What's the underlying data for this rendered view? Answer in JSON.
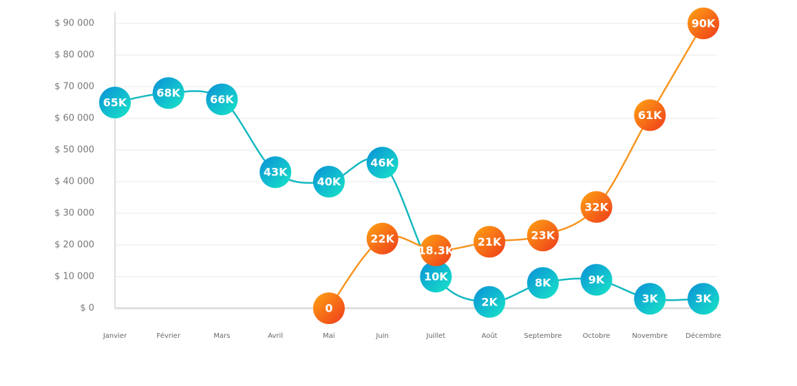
{
  "chart_data": {
    "type": "line",
    "categories": [
      "Janvier",
      "Février",
      "Mars",
      "Avril",
      "Mai",
      "Juin",
      "Juillet",
      "Août",
      "Septembre",
      "Octobre",
      "Novembre",
      "Décembre"
    ],
    "series": [
      {
        "color": "#12b8c0",
        "values": [
          65000,
          68000,
          66000,
          43000,
          40000,
          46000,
          10000,
          2000,
          8000,
          9000,
          3000,
          3000
        ],
        "value_labels": [
          "65K",
          "68K",
          "66K",
          "43K",
          "40K",
          "46K",
          "10K",
          "2K",
          "8K",
          "9K",
          "3K",
          "3K"
        ]
      },
      {
        "color": "#f7941d",
        "values": [
          null,
          null,
          null,
          null,
          0,
          22000,
          18300,
          21000,
          23000,
          32000,
          61000,
          90000
        ],
        "value_labels": [
          null,
          null,
          null,
          null,
          "0",
          "22K",
          "18.3K",
          "21K",
          "23K",
          "32K",
          "61K",
          "90K"
        ]
      }
    ],
    "ylim": [
      0,
      90000
    ],
    "yticks": [
      {
        "value": 0,
        "label": "$ 0"
      },
      {
        "value": 10000,
        "label": "$ 10 000"
      },
      {
        "value": 20000,
        "label": "$ 20 000"
      },
      {
        "value": 30000,
        "label": "$ 30 000"
      },
      {
        "value": 40000,
        "label": "$ 40 000"
      },
      {
        "value": 50000,
        "label": "$ 50 000"
      },
      {
        "value": 60000,
        "label": "$ 60 000"
      },
      {
        "value": 70000,
        "label": "$ 70 000"
      },
      {
        "value": 80000,
        "label": "$ 80 000"
      },
      {
        "value": 90000,
        "label": "$ 90 000"
      }
    ],
    "grid": true
  }
}
